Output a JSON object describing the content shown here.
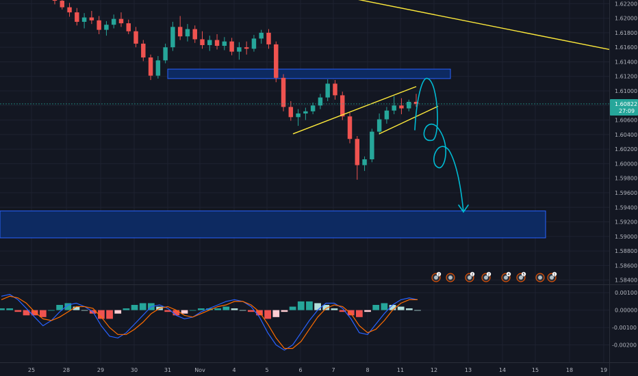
{
  "chart_data": [
    {
      "type": "candlestick",
      "title": "",
      "ylim": [
        1.5835,
        1.6225
      ],
      "yticks": [
        "1.62200",
        "1.62000",
        "1.61800",
        "1.61600",
        "1.61400",
        "1.61200",
        "1.61000",
        "1.60800",
        "1.60600",
        "1.60400",
        "1.60200",
        "1.60000",
        "1.59800",
        "1.59600",
        "1.59400",
        "1.59200",
        "1.59000",
        "1.58800",
        "1.58600",
        "1.58400"
      ],
      "xticks": [
        "25",
        "28",
        "29",
        "30",
        "31",
        "Nov",
        "4",
        "5",
        "6",
        "7",
        "8",
        "11",
        "12",
        "13",
        "14",
        "15",
        "18",
        "19"
      ],
      "current_price": "1.60822",
      "countdown": "27:09",
      "ohlc": [
        [
          1.6231,
          1.6236,
          1.6219,
          1.6224
        ],
        [
          1.6224,
          1.6229,
          1.6212,
          1.6215
        ],
        [
          1.6215,
          1.6221,
          1.6202,
          1.6208
        ],
        [
          1.6208,
          1.6214,
          1.619,
          1.6195
        ],
        [
          1.6195,
          1.6207,
          1.6186,
          1.6201
        ],
        [
          1.6201,
          1.621,
          1.6192,
          1.6197
        ],
        [
          1.6197,
          1.6203,
          1.6178,
          1.6184
        ],
        [
          1.6184,
          1.6196,
          1.6176,
          1.6191
        ],
        [
          1.6191,
          1.6205,
          1.6186,
          1.6199
        ],
        [
          1.6199,
          1.6208,
          1.6188,
          1.6193
        ],
        [
          1.6193,
          1.6198,
          1.6178,
          1.6182
        ],
        [
          1.6182,
          1.6188,
          1.616,
          1.6165
        ],
        [
          1.6165,
          1.617,
          1.6141,
          1.6146
        ],
        [
          1.6146,
          1.615,
          1.6115,
          1.6121
        ],
        [
          1.6121,
          1.6148,
          1.6117,
          1.6142
        ],
        [
          1.6142,
          1.6165,
          1.6138,
          1.616
        ],
        [
          1.616,
          1.6195,
          1.6155,
          1.6188
        ],
        [
          1.6188,
          1.6203,
          1.617,
          1.6175
        ],
        [
          1.6175,
          1.6192,
          1.6168,
          1.6185
        ],
        [
          1.6185,
          1.619,
          1.6166,
          1.6171
        ],
        [
          1.6171,
          1.6182,
          1.6158,
          1.6163
        ],
        [
          1.6163,
          1.6176,
          1.6155,
          1.617
        ],
        [
          1.617,
          1.6178,
          1.6157,
          1.6162
        ],
        [
          1.6162,
          1.6174,
          1.6156,
          1.6168
        ],
        [
          1.6168,
          1.6173,
          1.6149,
          1.6154
        ],
        [
          1.6154,
          1.6167,
          1.6143,
          1.616
        ],
        [
          1.616,
          1.6168,
          1.615,
          1.6158
        ],
        [
          1.6158,
          1.6177,
          1.6154,
          1.6172
        ],
        [
          1.6172,
          1.6184,
          1.6165,
          1.618
        ],
        [
          1.618,
          1.6185,
          1.6158,
          1.6164
        ],
        [
          1.6164,
          1.6168,
          1.6112,
          1.6118
        ],
        [
          1.6118,
          1.6123,
          1.6072,
          1.6078
        ],
        [
          1.6078,
          1.6086,
          1.6059,
          1.6064
        ],
        [
          1.6064,
          1.6075,
          1.6052,
          1.6069
        ],
        [
          1.6069,
          1.6077,
          1.606,
          1.6072
        ],
        [
          1.6072,
          1.6084,
          1.6068,
          1.608
        ],
        [
          1.608,
          1.6096,
          1.6075,
          1.6091
        ],
        [
          1.6091,
          1.6116,
          1.6086,
          1.611
        ],
        [
          1.611,
          1.6115,
          1.6088,
          1.6094
        ],
        [
          1.6094,
          1.6099,
          1.606,
          1.6065
        ],
        [
          1.6065,
          1.607,
          1.6028,
          1.6034
        ],
        [
          1.6034,
          1.6038,
          1.5978,
          1.5998
        ],
        [
          1.5998,
          1.601,
          1.599,
          1.6006
        ],
        [
          1.6006,
          1.6048,
          1.6002,
          1.6044
        ],
        [
          1.6044,
          1.6069,
          1.604,
          1.6061
        ],
        [
          1.6061,
          1.6078,
          1.6055,
          1.6073
        ],
        [
          1.6073,
          1.6093,
          1.6068,
          1.608
        ],
        [
          1.608,
          1.609,
          1.6068,
          1.6076
        ],
        [
          1.6076,
          1.6088,
          1.6072,
          1.6085
        ],
        [
          1.6085,
          1.6096,
          1.6078,
          1.6082
        ]
      ],
      "drawings": {
        "resistance_zone": [
          1.6117,
          1.613
        ],
        "target_zone": [
          1.5898,
          1.5935
        ],
        "descending_trendline": [
          [
            1.6227,
            1.6157
          ]
        ],
        "wedge_lines": [
          [
            1.6041,
            1.6106
          ],
          [
            1.6041,
            1.6079
          ]
        ]
      },
      "event_markers": [
        "2",
        "",
        "2",
        "2",
        "4",
        "5",
        "",
        "1"
      ]
    },
    {
      "type": "line",
      "title": "",
      "ylim": [
        -0.003,
        0.0014
      ],
      "yticks": [
        "0.00100",
        "0.00000",
        "-0.00100",
        "-0.00200"
      ],
      "series": [
        {
          "color": "#2962ff",
          "values": [
            0.0008,
            0.0009,
            0.0006,
            0.0001,
            -0.0004,
            -0.0009,
            -0.0006,
            -0.0001,
            0.0003,
            0.0004,
            0.0002,
            -0.0001,
            -0.0009,
            -0.0015,
            -0.0016,
            -0.0013,
            -0.0008,
            -0.0003,
            0.0002,
            0.0003,
            0.0001,
            -0.0003,
            -0.0005,
            -0.0004,
            -0.0001,
            0.0001,
            0.0003,
            0.0005,
            0.0006,
            0.0005,
            0.0002,
            -0.0004,
            -0.0013,
            -0.002,
            -0.0023,
            -0.002,
            -0.0013,
            -0.0006,
            0.0,
            0.0004,
            0.0004,
            0.0001,
            -0.0005,
            -0.0013,
            -0.0014,
            -0.0008,
            -0.0002,
            0.0003,
            0.0006,
            0.0007,
            0.0006
          ]
        },
        {
          "color": "#ff6d00",
          "values": [
            0.0006,
            0.0008,
            0.0007,
            0.0004,
            -0.0001,
            -0.0005,
            -0.0006,
            -0.0004,
            -0.0001,
            0.0002,
            0.0002,
            0.0001,
            -0.0004,
            -0.001,
            -0.0014,
            -0.0014,
            -0.0011,
            -0.0007,
            -0.0002,
            0.0001,
            0.0002,
            0.0,
            -0.0003,
            -0.0004,
            -0.0002,
            0.0,
            0.0002,
            0.0003,
            0.0005,
            0.0005,
            0.0003,
            -0.0001,
            -0.0008,
            -0.0016,
            -0.0022,
            -0.0022,
            -0.0018,
            -0.0011,
            -0.0004,
            0.0001,
            0.0003,
            0.0002,
            -0.0002,
            -0.0009,
            -0.0013,
            -0.0011,
            -0.0006,
            0.0,
            0.0004,
            0.0006,
            0.0006
          ]
        },
        {
          "color": "#26a69a",
          "values": [
            0.0001,
            0.0001,
            -0.0001,
            -0.0003,
            -0.0003,
            -0.0004,
            0.0,
            0.0003,
            0.0004,
            0.0002,
            0.0,
            -0.0002,
            -0.0005,
            -0.0005,
            -0.0002,
            0.0001,
            0.0003,
            0.0004,
            0.0004,
            0.0002,
            -0.0001,
            -0.0003,
            -0.0002,
            0.0,
            0.0001,
            0.0001,
            0.0001,
            0.0002,
            0.0001,
            0.0,
            -0.0001,
            -0.0003,
            -0.0005,
            -0.0004,
            -0.0001,
            0.0002,
            0.0005,
            0.0005,
            0.0004,
            0.0003,
            0.0001,
            -0.0001,
            -0.0003,
            -0.0004,
            -0.0001,
            0.0003,
            0.0004,
            0.0003,
            0.0002,
            0.0001,
            0.0
          ]
        }
      ]
    }
  ]
}
